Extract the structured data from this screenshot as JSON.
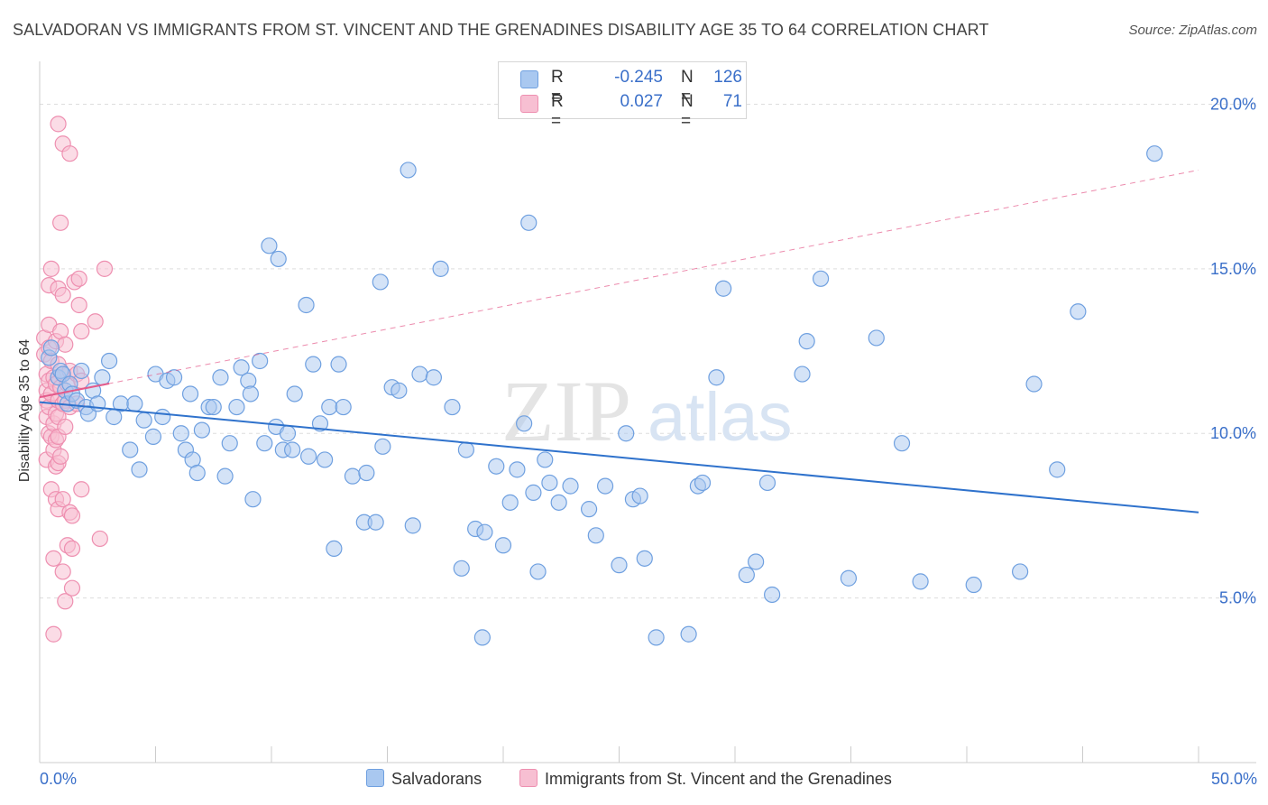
{
  "title": "SALVADORAN VS IMMIGRANTS FROM ST. VINCENT AND THE GRENADINES DISABILITY AGE 35 TO 64 CORRELATION CHART",
  "source": "Source: ZipAtlas.com",
  "watermark": {
    "zip": "ZIP",
    "atlas": "atlas"
  },
  "legend": {
    "r_label": "R =",
    "n_label": "N =",
    "series": [
      {
        "name_key": "salvadorans",
        "r": "-0.245",
        "n": "126",
        "color": "#6fa0e0"
      },
      {
        "name_key": "svg_immigrants",
        "r": "0.027",
        "n": "71",
        "color": "#f09ab8"
      }
    ]
  },
  "bottom_legend": {
    "salvadorans": "Salvadorans",
    "svg_immigrants": "Immigrants from St. Vincent and the Grenadines"
  },
  "colors": {
    "blue_fill": "#a9c8f0",
    "blue_stroke": "#6fa0e0",
    "blue_line": "#2f72cc",
    "pink_fill": "#f7bfd2",
    "pink_stroke": "#ee8fb0",
    "pink_line": "#e45a8a",
    "axis_text": "#3a6fc9",
    "grid": "#dddddd"
  },
  "chart_data": {
    "type": "scatter",
    "ylabel": "Disability Age 35 to 64",
    "x_tick_labels": [
      "0.0%",
      "50.0%"
    ],
    "y_tick_labels": [
      "5.0%",
      "10.0%",
      "15.0%",
      "20.0%"
    ],
    "xlim": [
      0,
      50
    ],
    "ylim": [
      0,
      21
    ],
    "y_ticks": [
      5,
      10,
      15,
      20
    ],
    "grid": true,
    "legend_position": "top-center",
    "series": [
      {
        "key": "salvadorans",
        "trend": {
          "x0": 0,
          "y0": 10.95,
          "x1": 50,
          "y1": 7.6,
          "style": "solid"
        },
        "points": [
          [
            0.4,
            12.3
          ],
          [
            0.5,
            12.6
          ],
          [
            0.8,
            11.7
          ],
          [
            0.9,
            11.9
          ],
          [
            1.0,
            11.8
          ],
          [
            1.1,
            11.3
          ],
          [
            1.2,
            10.9
          ],
          [
            1.3,
            11.5
          ],
          [
            1.4,
            11.2
          ],
          [
            1.6,
            11.0
          ],
          [
            1.8,
            11.9
          ],
          [
            2.0,
            10.8
          ],
          [
            2.1,
            10.6
          ],
          [
            2.3,
            11.3
          ],
          [
            2.5,
            10.9
          ],
          [
            2.7,
            11.7
          ],
          [
            3.0,
            12.2
          ],
          [
            3.2,
            10.5
          ],
          [
            3.5,
            10.9
          ],
          [
            3.9,
            9.5
          ],
          [
            4.1,
            10.9
          ],
          [
            4.3,
            8.9
          ],
          [
            4.5,
            10.4
          ],
          [
            4.9,
            9.9
          ],
          [
            5.0,
            11.8
          ],
          [
            5.3,
            10.5
          ],
          [
            5.5,
            11.6
          ],
          [
            5.8,
            11.7
          ],
          [
            6.1,
            10.0
          ],
          [
            6.3,
            9.5
          ],
          [
            6.5,
            11.2
          ],
          [
            6.6,
            9.2
          ],
          [
            6.8,
            8.8
          ],
          [
            7.0,
            10.1
          ],
          [
            7.3,
            10.8
          ],
          [
            7.5,
            10.8
          ],
          [
            7.8,
            11.7
          ],
          [
            8.0,
            8.7
          ],
          [
            8.2,
            9.7
          ],
          [
            8.5,
            10.8
          ],
          [
            8.7,
            12.0
          ],
          [
            9.0,
            11.6
          ],
          [
            9.1,
            11.2
          ],
          [
            9.2,
            8.0
          ],
          [
            9.5,
            12.2
          ],
          [
            9.7,
            9.7
          ],
          [
            9.9,
            15.7
          ],
          [
            10.2,
            10.2
          ],
          [
            10.3,
            15.3
          ],
          [
            10.5,
            9.5
          ],
          [
            10.7,
            10.0
          ],
          [
            10.9,
            9.5
          ],
          [
            11.0,
            11.2
          ],
          [
            11.5,
            13.9
          ],
          [
            11.6,
            9.3
          ],
          [
            11.8,
            12.1
          ],
          [
            12.1,
            10.3
          ],
          [
            12.3,
            9.2
          ],
          [
            12.5,
            10.8
          ],
          [
            12.7,
            6.5
          ],
          [
            12.9,
            12.1
          ],
          [
            13.1,
            10.8
          ],
          [
            13.5,
            8.7
          ],
          [
            14.0,
            7.3
          ],
          [
            14.1,
            8.8
          ],
          [
            14.5,
            7.3
          ],
          [
            14.7,
            14.6
          ],
          [
            14.8,
            9.6
          ],
          [
            15.2,
            11.4
          ],
          [
            15.5,
            11.3
          ],
          [
            15.9,
            18.0
          ],
          [
            16.1,
            7.2
          ],
          [
            16.4,
            11.8
          ],
          [
            17.0,
            11.7
          ],
          [
            17.3,
            15.0
          ],
          [
            17.8,
            10.8
          ],
          [
            18.2,
            5.9
          ],
          [
            18.4,
            9.5
          ],
          [
            18.8,
            7.1
          ],
          [
            19.1,
            3.8
          ],
          [
            19.2,
            7.0
          ],
          [
            19.7,
            9.0
          ],
          [
            20.0,
            6.6
          ],
          [
            20.3,
            7.9
          ],
          [
            20.6,
            8.9
          ],
          [
            20.9,
            10.3
          ],
          [
            21.1,
            16.4
          ],
          [
            21.3,
            8.2
          ],
          [
            21.5,
            5.8
          ],
          [
            21.8,
            9.2
          ],
          [
            22.0,
            8.5
          ],
          [
            22.4,
            7.9
          ],
          [
            22.9,
            8.4
          ],
          [
            23.7,
            7.7
          ],
          [
            24.0,
            6.9
          ],
          [
            24.4,
            8.4
          ],
          [
            25.0,
            6.0
          ],
          [
            25.3,
            10.0
          ],
          [
            25.6,
            8.0
          ],
          [
            25.9,
            8.1
          ],
          [
            26.1,
            6.2
          ],
          [
            26.6,
            3.8
          ],
          [
            28.0,
            3.9
          ],
          [
            28.4,
            8.4
          ],
          [
            28.6,
            8.5
          ],
          [
            29.2,
            11.7
          ],
          [
            29.5,
            14.4
          ],
          [
            30.5,
            5.7
          ],
          [
            30.9,
            6.1
          ],
          [
            31.4,
            8.5
          ],
          [
            31.6,
            5.1
          ],
          [
            32.9,
            11.8
          ],
          [
            33.1,
            12.8
          ],
          [
            33.7,
            14.7
          ],
          [
            34.9,
            5.6
          ],
          [
            36.1,
            12.9
          ],
          [
            37.2,
            9.7
          ],
          [
            38.0,
            5.5
          ],
          [
            40.3,
            5.4
          ],
          [
            42.3,
            5.8
          ],
          [
            42.9,
            11.5
          ],
          [
            43.9,
            8.9
          ],
          [
            44.8,
            13.7
          ],
          [
            48.1,
            18.5
          ]
        ]
      },
      {
        "key": "svg_immigrants",
        "trend": {
          "x0": 0,
          "y0": 11.1,
          "x1": 50,
          "y1": 18.0,
          "style": "dashed",
          "solid_x1": 3
        },
        "points": [
          [
            0.2,
            12.9
          ],
          [
            0.2,
            12.4
          ],
          [
            0.3,
            11.8
          ],
          [
            0.3,
            11.3
          ],
          [
            0.3,
            11.0
          ],
          [
            0.3,
            10.5
          ],
          [
            0.3,
            9.2
          ],
          [
            0.4,
            14.5
          ],
          [
            0.4,
            13.3
          ],
          [
            0.4,
            12.6
          ],
          [
            0.4,
            11.6
          ],
          [
            0.4,
            10.8
          ],
          [
            0.4,
            10.0
          ],
          [
            0.5,
            15.0
          ],
          [
            0.5,
            12.2
          ],
          [
            0.5,
            11.2
          ],
          [
            0.5,
            9.9
          ],
          [
            0.5,
            8.3
          ],
          [
            0.6,
            11.7
          ],
          [
            0.6,
            10.3
          ],
          [
            0.6,
            9.5
          ],
          [
            0.6,
            6.2
          ],
          [
            0.6,
            3.9
          ],
          [
            0.7,
            12.8
          ],
          [
            0.7,
            11.5
          ],
          [
            0.7,
            10.6
          ],
          [
            0.7,
            9.8
          ],
          [
            0.7,
            9.0
          ],
          [
            0.7,
            8.0
          ],
          [
            0.8,
            19.4
          ],
          [
            0.8,
            14.4
          ],
          [
            0.8,
            12.1
          ],
          [
            0.8,
            11.0
          ],
          [
            0.8,
            10.5
          ],
          [
            0.8,
            9.9
          ],
          [
            0.8,
            9.1
          ],
          [
            0.8,
            7.7
          ],
          [
            0.9,
            16.4
          ],
          [
            0.9,
            13.1
          ],
          [
            0.9,
            11.4
          ],
          [
            0.9,
            9.3
          ],
          [
            1.0,
            18.8
          ],
          [
            1.0,
            14.2
          ],
          [
            1.0,
            11.8
          ],
          [
            1.0,
            10.9
          ],
          [
            1.0,
            8.0
          ],
          [
            1.0,
            5.8
          ],
          [
            1.1,
            12.7
          ],
          [
            1.1,
            11.0
          ],
          [
            1.1,
            10.2
          ],
          [
            1.1,
            4.9
          ],
          [
            1.2,
            6.6
          ],
          [
            1.2,
            11.5
          ],
          [
            1.3,
            18.5
          ],
          [
            1.3,
            11.9
          ],
          [
            1.3,
            10.8
          ],
          [
            1.3,
            7.6
          ],
          [
            1.4,
            6.5
          ],
          [
            1.4,
            7.5
          ],
          [
            1.4,
            5.3
          ],
          [
            1.5,
            14.6
          ],
          [
            1.6,
            11.8
          ],
          [
            1.6,
            10.9
          ],
          [
            1.7,
            14.7
          ],
          [
            1.7,
            13.9
          ],
          [
            1.8,
            13.1
          ],
          [
            1.8,
            11.6
          ],
          [
            1.8,
            8.3
          ],
          [
            2.4,
            13.4
          ],
          [
            2.6,
            6.8
          ],
          [
            2.8,
            15.0
          ]
        ]
      }
    ]
  }
}
